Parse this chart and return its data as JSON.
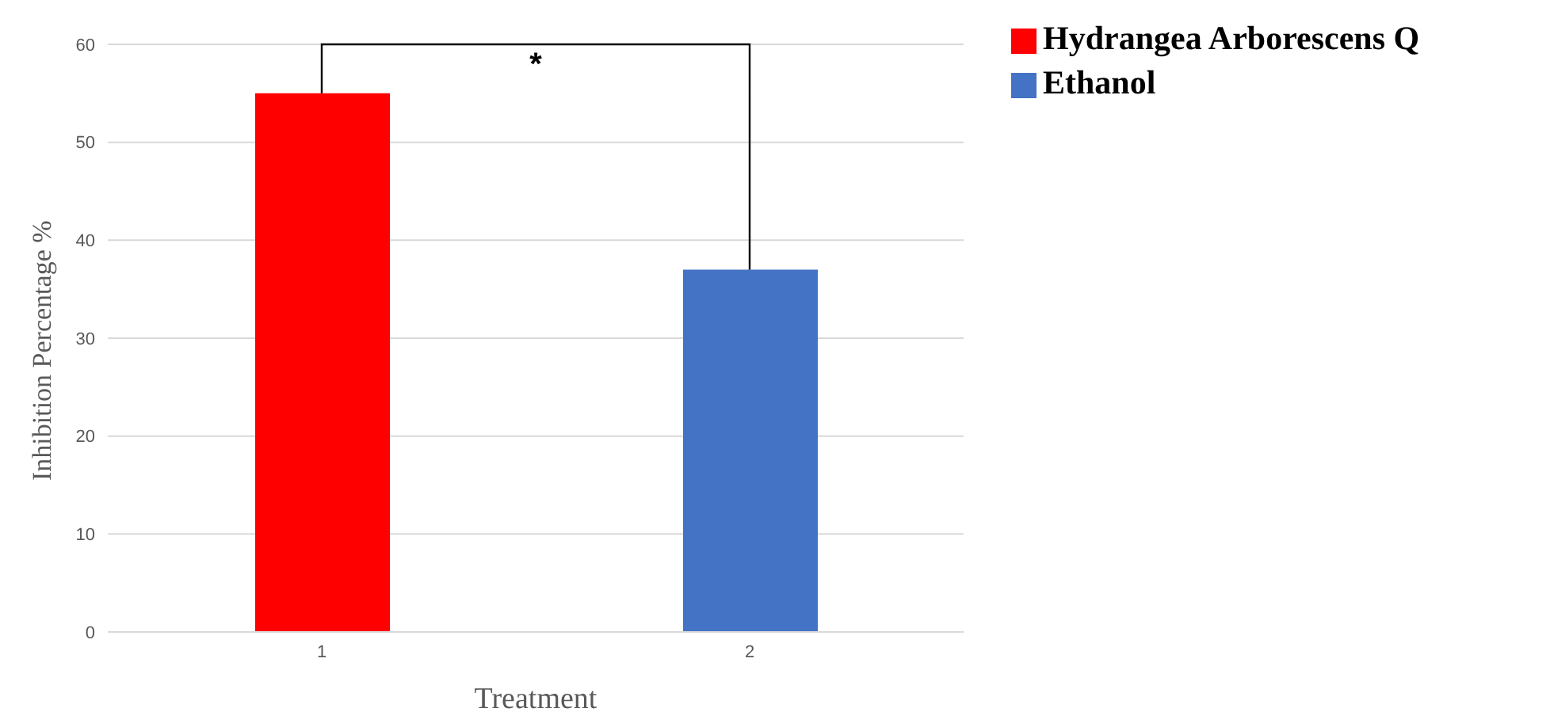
{
  "chart_data": {
    "type": "bar",
    "xlabel": "Treatment",
    "ylabel": "Inhibition Percentage %",
    "categories": [
      "1",
      "2"
    ],
    "series": [
      {
        "name": "Hydrangea Arborescens Q",
        "color": "#ff0000",
        "values": [
          55,
          null
        ]
      },
      {
        "name": "Ethanol",
        "color": "#4472c4",
        "values": [
          null,
          37
        ]
      }
    ],
    "stacked": true,
    "ylim": [
      0,
      60
    ],
    "yticks": [
      0,
      10,
      20,
      30,
      40,
      50,
      60
    ],
    "grid": "y",
    "legend": "top right",
    "annotations": [
      "*"
    ]
  }
}
